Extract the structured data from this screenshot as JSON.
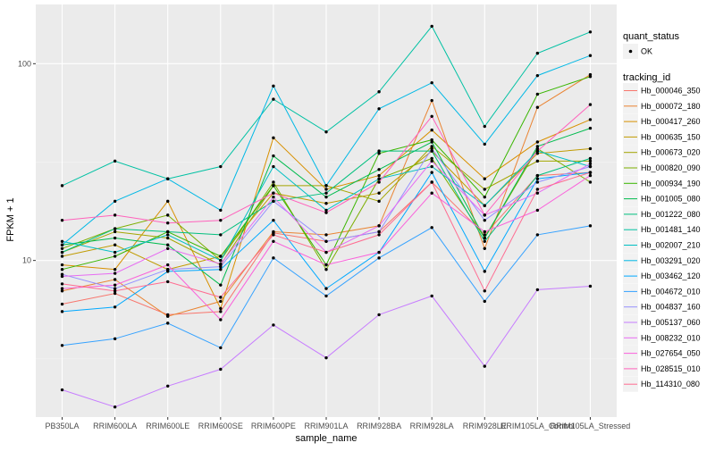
{
  "chart_data": {
    "type": "line",
    "xlabel": "sample_name",
    "ylabel": "FPKM + 1",
    "y_scale": "log10",
    "ylim": [
      1.6,
      200
    ],
    "y_ticks": [
      10,
      100
    ],
    "grid": true,
    "legend_position": "right",
    "categories": [
      "PB350LA",
      "RRIM600LA",
      "RRIM600LE",
      "RRIM600SE",
      "RRIM600PE",
      "RRIM901LA",
      "RRIM928BA",
      "RRIM928LA",
      "RRIM928LE",
      "RRIM105LA_Control",
      "RRIM105LA_Stressed"
    ],
    "category_labels": [
      "PB350LA",
      "RRIM600LA",
      "RRIM600LE",
      "RRIM600SE",
      "RRIM600PE",
      "RRIM901LA",
      "RRIM928BA",
      "RRIM928LA",
      "RRIM928LE",
      "RRIM105LA_Control",
      "RRIM105LA_Stressed"
    ],
    "point_legend": {
      "title": "quant_status",
      "entries": [
        "OK"
      ]
    },
    "color_legend_title": "tracking_id",
    "series": [
      {
        "name": "Hb_000046_350",
        "color": "#F8766D",
        "values": [
          6.0,
          6.8,
          5.3,
          5.5,
          13.8,
          12.5,
          14.0,
          25.0,
          13.5,
          27.0,
          28.0
        ]
      },
      {
        "name": "Hb_000072_180",
        "color": "#EA8331",
        "values": [
          7.0,
          8.0,
          5.2,
          6.2,
          14.0,
          13.5,
          15.0,
          65.0,
          11.5,
          60.0,
          88.0
        ]
      },
      {
        "name": "Hb_000417_260",
        "color": "#D89000",
        "values": [
          9.5,
          9.0,
          20.0,
          5.7,
          42.0,
          23.0,
          27.0,
          46.0,
          26.0,
          40.0,
          52.0
        ]
      },
      {
        "name": "Hb_000635_150",
        "color": "#C09B00",
        "values": [
          10.5,
          12.0,
          9.0,
          10.5,
          22.0,
          19.5,
          22.0,
          36.0,
          19.0,
          35.0,
          37.0
        ]
      },
      {
        "name": "Hb_000673_020",
        "color": "#A3A500",
        "values": [
          11.0,
          14.0,
          13.0,
          9.5,
          24.0,
          24.0,
          20.0,
          38.0,
          23.0,
          32.0,
          32.0
        ]
      },
      {
        "name": "Hb_000820_090",
        "color": "#7CAE00",
        "values": [
          11.5,
          14.5,
          17.0,
          10.0,
          25.0,
          9.0,
          26.0,
          33.0,
          13.0,
          37.0,
          25.0
        ]
      },
      {
        "name": "Hb_000934_190",
        "color": "#39B600",
        "values": [
          9.0,
          10.5,
          14.0,
          10.5,
          24.0,
          9.5,
          35.0,
          41.0,
          21.0,
          70.0,
          86.0
        ]
      },
      {
        "name": "Hb_001005_080",
        "color": "#00BB4E",
        "values": [
          12.0,
          13.0,
          12.0,
          7.5,
          34.0,
          21.0,
          29.0,
          40.0,
          13.0,
          38.0,
          47.0
        ]
      },
      {
        "name": "Hb_001222_080",
        "color": "#00BF7D",
        "values": [
          11.0,
          14.5,
          14.0,
          13.5,
          20.0,
          22.0,
          36.0,
          36.0,
          12.5,
          27.0,
          33.0
        ]
      },
      {
        "name": "Hb_001481_140",
        "color": "#00C1A3",
        "values": [
          24.0,
          32.0,
          26.0,
          30.0,
          66.0,
          45.0,
          72.0,
          155.0,
          48.0,
          113.0,
          145.0
        ]
      },
      {
        "name": "Hb_002007_210",
        "color": "#00BFC4",
        "values": [
          12.5,
          11.0,
          13.5,
          10.0,
          30.0,
          18.0,
          26.0,
          30.0,
          19.0,
          36.0,
          30.0
        ]
      },
      {
        "name": "Hb_003291_020",
        "color": "#00B8E5",
        "values": [
          12.0,
          20.0,
          26.0,
          18.0,
          77.0,
          24.0,
          59.0,
          80.0,
          39.0,
          87.0,
          110.0
        ]
      },
      {
        "name": "Hb_003462_120",
        "color": "#00A9FF",
        "values": [
          5.5,
          5.8,
          8.8,
          9.0,
          16.0,
          7.2,
          11.0,
          28.0,
          8.8,
          26.0,
          28.0
        ]
      },
      {
        "name": "Hb_004672_010",
        "color": "#35A2FF",
        "values": [
          3.7,
          4.0,
          4.8,
          3.6,
          10.3,
          6.6,
          10.3,
          14.7,
          6.2,
          13.5,
          15.0
        ]
      },
      {
        "name": "Hb_004837_160",
        "color": "#9590FF",
        "values": [
          8.5,
          7.2,
          9.0,
          9.3,
          20.0,
          12.5,
          14.0,
          37.0,
          16.0,
          25.0,
          30.0
        ]
      },
      {
        "name": "Hb_005137_060",
        "color": "#C77CFF",
        "values": [
          2.2,
          1.8,
          2.3,
          2.8,
          4.7,
          3.2,
          5.3,
          6.6,
          2.9,
          7.1,
          7.4
        ]
      },
      {
        "name": "Hb_008232_010",
        "color": "#E76BF3",
        "values": [
          8.3,
          8.6,
          11.5,
          9.6,
          21.0,
          11.0,
          15.0,
          32.0,
          17.0,
          22.0,
          31.0
        ]
      },
      {
        "name": "Hb_027654_050",
        "color": "#FA62DB",
        "values": [
          7.2,
          7.5,
          9.5,
          5.0,
          12.5,
          9.5,
          11.0,
          22.0,
          14.0,
          18.0,
          27.0
        ]
      },
      {
        "name": "Hb_028515_010",
        "color": "#FF62BC",
        "values": [
          16.0,
          17.0,
          15.5,
          16.0,
          22.0,
          17.5,
          25.0,
          54.0,
          17.0,
          36.0,
          62.0
        ]
      },
      {
        "name": "Hb_114310_080",
        "color": "#FF6C91",
        "values": [
          7.6,
          7.0,
          7.8,
          6.5,
          13.5,
          11.0,
          13.5,
          25.0,
          7.0,
          23.0,
          28.0
        ]
      }
    ]
  }
}
